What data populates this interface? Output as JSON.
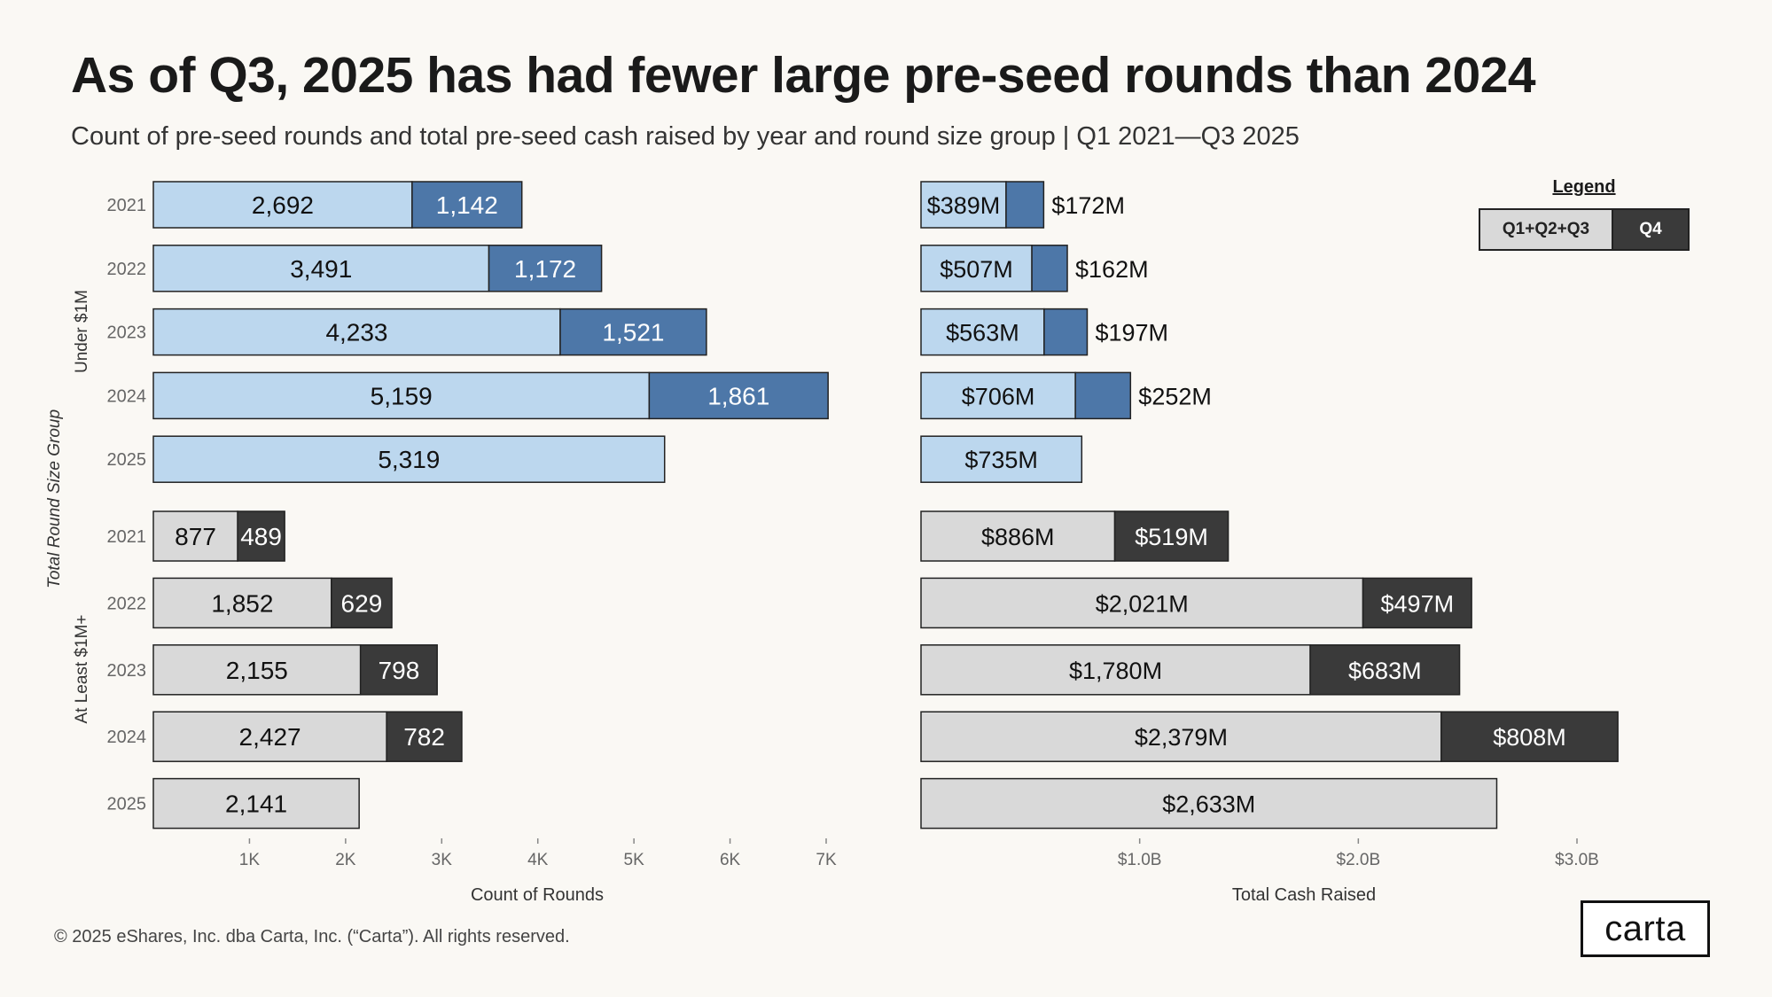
{
  "title": "As of Q3, 2025 has had fewer large pre-seed rounds than 2024",
  "subtitle": "Count of pre-seed rounds and total pre-seed cash raised by year and round size group | Q1 2021—Q3 2025",
  "footer": "© 2025 eShares, Inc. dba Carta, Inc. (“Carta”). All rights reserved.",
  "logo": "carta",
  "legend": {
    "title": "Legend",
    "q1q3": "Q1+Q2+Q3",
    "q4": "Q4"
  },
  "colors": {
    "under_q1q3": "#BCD7EE",
    "under_q4": "#4D77A8",
    "over_q1q3": "#D9D9D9",
    "over_q4": "#3A3A3A",
    "bar_border": "#222222",
    "axis_text": "#666666"
  },
  "chart_data": {
    "type": "bar",
    "orientation": "horizontal",
    "stacked": true,
    "y_axis_title": "Total Round Size Group",
    "groups": [
      {
        "label": "Under $1M",
        "rows": [
          {
            "year": "2021",
            "count_q1q3": 2692,
            "count_q1q3_label": "2,692",
            "count_q4": 1142,
            "count_q4_label": "1,142",
            "cash_q1q3": 389,
            "cash_q1q3_label": "$389M",
            "cash_q4": 172,
            "cash_q4_label": "$172M"
          },
          {
            "year": "2022",
            "count_q1q3": 3491,
            "count_q1q3_label": "3,491",
            "count_q4": 1172,
            "count_q4_label": "1,172",
            "cash_q1q3": 507,
            "cash_q1q3_label": "$507M",
            "cash_q4": 162,
            "cash_q4_label": "$162M"
          },
          {
            "year": "2023",
            "count_q1q3": 4233,
            "count_q1q3_label": "4,233",
            "count_q4": 1521,
            "count_q4_label": "1,521",
            "cash_q1q3": 563,
            "cash_q1q3_label": "$563M",
            "cash_q4": 197,
            "cash_q4_label": "$197M"
          },
          {
            "year": "2024",
            "count_q1q3": 5159,
            "count_q1q3_label": "5,159",
            "count_q4": 1861,
            "count_q4_label": "1,861",
            "cash_q1q3": 706,
            "cash_q1q3_label": "$706M",
            "cash_q4": 252,
            "cash_q4_label": "$252M"
          },
          {
            "year": "2025",
            "count_q1q3": 5319,
            "count_q1q3_label": "5,319",
            "count_q4": null,
            "count_q4_label": null,
            "cash_q1q3": 735,
            "cash_q1q3_label": "$735M",
            "cash_q4": null,
            "cash_q4_label": null
          }
        ]
      },
      {
        "label": "At Least $1M+",
        "rows": [
          {
            "year": "2021",
            "count_q1q3": 877,
            "count_q1q3_label": "877",
            "count_q4": 489,
            "count_q4_label": "489",
            "cash_q1q3": 886,
            "cash_q1q3_label": "$886M",
            "cash_q4": 519,
            "cash_q4_label": "$519M"
          },
          {
            "year": "2022",
            "count_q1q3": 1852,
            "count_q1q3_label": "1,852",
            "count_q4": 629,
            "count_q4_label": "629",
            "cash_q1q3": 2021,
            "cash_q1q3_label": "$2,021M",
            "cash_q4": 497,
            "cash_q4_label": "$497M"
          },
          {
            "year": "2023",
            "count_q1q3": 2155,
            "count_q1q3_label": "2,155",
            "count_q4": 798,
            "count_q4_label": "798",
            "cash_q1q3": 1780,
            "cash_q1q3_label": "$1,780M",
            "cash_q4": 683,
            "cash_q4_label": "$683M"
          },
          {
            "year": "2024",
            "count_q1q3": 2427,
            "count_q1q3_label": "2,427",
            "count_q4": 782,
            "count_q4_label": "782",
            "cash_q1q3": 2379,
            "cash_q1q3_label": "$2,379M",
            "cash_q4": 808,
            "cash_q4_label": "$808M"
          },
          {
            "year": "2025",
            "count_q1q3": 2141,
            "count_q1q3_label": "2,141",
            "count_q4": null,
            "count_q4_label": null,
            "cash_q1q3": 2633,
            "cash_q1q3_label": "$2,633M",
            "cash_q4": null,
            "cash_q4_label": null
          }
        ]
      }
    ],
    "left_panel": {
      "xlabel": "Count of Rounds",
      "xlim": [
        0,
        7000
      ],
      "ticks": [
        1000,
        2000,
        3000,
        4000,
        5000,
        6000,
        7000
      ],
      "tick_labels": [
        "1K",
        "2K",
        "3K",
        "4K",
        "5K",
        "6K",
        "7K"
      ]
    },
    "right_panel": {
      "xlabel": "Total Cash Raised",
      "unit": "$M",
      "xlim": [
        0,
        3000
      ],
      "ticks": [
        1000,
        2000,
        3000
      ],
      "tick_labels": [
        "$1.0B",
        "$2.0B",
        "$3.0B"
      ]
    }
  }
}
